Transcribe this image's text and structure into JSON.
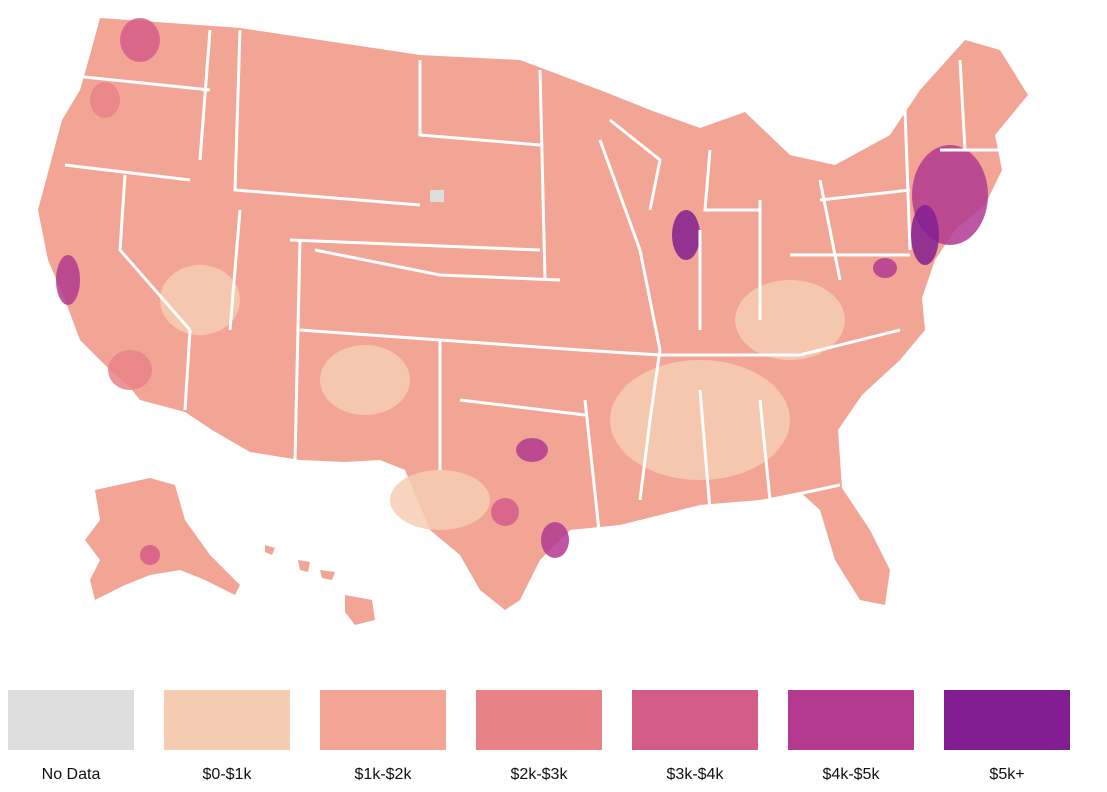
{
  "map": {
    "colors": {
      "no_data": "#dddddd",
      "bin0": "#f6cdb3",
      "bin1": "#f2a595",
      "bin2": "#e88188",
      "bin3": "#d35c87",
      "bin4": "#b33a90",
      "bin5": "#821e91",
      "border": "#ffffff"
    }
  },
  "legend": {
    "items": [
      {
        "label": "No Data",
        "color": "#dddddd"
      },
      {
        "label": "$0-$1k",
        "color": "#f6cdb3"
      },
      {
        "label": "$1k-$2k",
        "color": "#f2a595"
      },
      {
        "label": "$2k-$3k",
        "color": "#e88188"
      },
      {
        "label": "$3k-$4k",
        "color": "#d35c87"
      },
      {
        "label": "$4k-$5k",
        "color": "#b33a90"
      },
      {
        "label": "$5k+",
        "color": "#821e91"
      }
    ]
  }
}
